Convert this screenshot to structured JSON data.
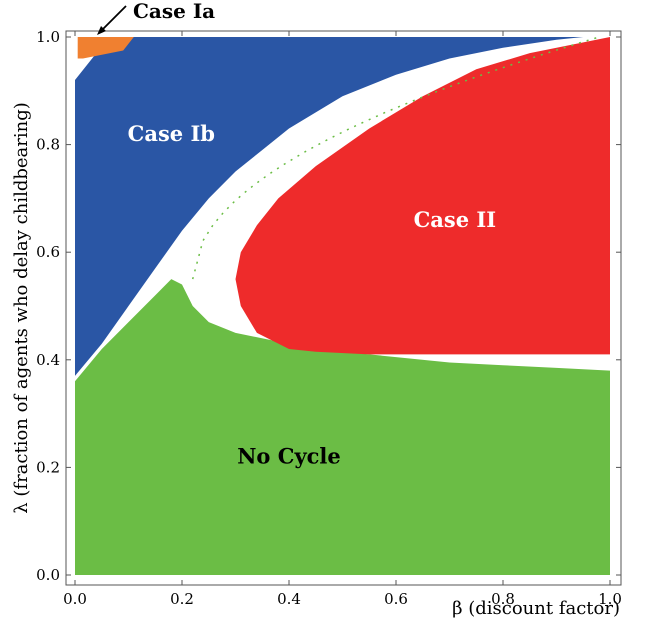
{
  "chart_data": {
    "type": "region-map",
    "title": "",
    "xlabel": "β (discount factor)",
    "ylabel": "λ (fraction of agents who delay childbearing)",
    "xlim": [
      0,
      1
    ],
    "ylim": [
      0,
      1
    ],
    "x_ticks": [
      "0.0",
      "0.2",
      "0.4",
      "0.6",
      "0.8",
      "1.0"
    ],
    "y_ticks": [
      "0.0",
      "0.2",
      "0.4",
      "0.6",
      "0.8",
      "1.0"
    ],
    "grid": false,
    "colors": {
      "no_cycle": "#6bbd45",
      "case_ib": "#2a56a5",
      "case_ii": "#ee2b2b",
      "case_ia": "#f08030",
      "gap": "#ffffff"
    },
    "regions": {
      "no_cycle": {
        "label": "No Cycle",
        "label_pos": [
          0.4,
          0.22
        ],
        "label_color": "#000000"
      },
      "case_ib": {
        "label": "Case Ib",
        "label_pos": [
          0.18,
          0.82
        ],
        "label_color": "#ffffff"
      },
      "case_ii": {
        "label": "Case II",
        "label_pos": [
          0.71,
          0.66
        ],
        "label_color": "#ffffff"
      },
      "case_ia": {
        "label": "Case Ia",
        "label_color": "#000000"
      }
    },
    "no_cycle_boundary": [
      [
        0.0,
        0.36
      ],
      [
        0.05,
        0.42
      ],
      [
        0.1,
        0.47
      ],
      [
        0.15,
        0.52
      ],
      [
        0.18,
        0.55
      ],
      [
        0.2,
        0.54
      ],
      [
        0.22,
        0.5
      ],
      [
        0.25,
        0.47
      ],
      [
        0.3,
        0.45
      ],
      [
        0.4,
        0.43
      ],
      [
        0.5,
        0.415
      ],
      [
        0.6,
        0.405
      ],
      [
        0.7,
        0.395
      ],
      [
        0.8,
        0.39
      ],
      [
        0.9,
        0.385
      ],
      [
        1.0,
        0.38
      ]
    ],
    "case_ib_lower_boundary": [
      [
        0.0,
        0.37
      ],
      [
        0.05,
        0.43
      ],
      [
        0.1,
        0.5
      ],
      [
        0.15,
        0.57
      ],
      [
        0.2,
        0.64
      ],
      [
        0.25,
        0.7
      ],
      [
        0.3,
        0.75
      ],
      [
        0.35,
        0.79
      ],
      [
        0.4,
        0.83
      ],
      [
        0.5,
        0.89
      ],
      [
        0.6,
        0.93
      ],
      [
        0.7,
        0.96
      ],
      [
        0.8,
        0.98
      ],
      [
        0.9,
        0.995
      ],
      [
        0.95,
        1.0
      ]
    ],
    "case_ib_upper_left_boundary": [
      [
        0.0,
        0.92
      ],
      [
        0.04,
        0.97
      ],
      [
        0.08,
        0.99
      ],
      [
        0.1,
        1.0
      ]
    ],
    "case_ii_left_boundary": [
      [
        0.4,
        0.42
      ],
      [
        0.34,
        0.45
      ],
      [
        0.31,
        0.5
      ],
      [
        0.3,
        0.55
      ],
      [
        0.31,
        0.6
      ],
      [
        0.34,
        0.65
      ],
      [
        0.38,
        0.7
      ],
      [
        0.45,
        0.76
      ],
      [
        0.55,
        0.83
      ],
      [
        0.65,
        0.89
      ],
      [
        0.75,
        0.94
      ],
      [
        0.85,
        0.97
      ],
      [
        0.95,
        0.99
      ],
      [
        1.0,
        1.0
      ]
    ],
    "case_ii_bottom": 0.41,
    "case_ia_box": {
      "x": [
        0.005,
        0.09
      ],
      "y": [
        0.96,
        1.0
      ]
    }
  }
}
